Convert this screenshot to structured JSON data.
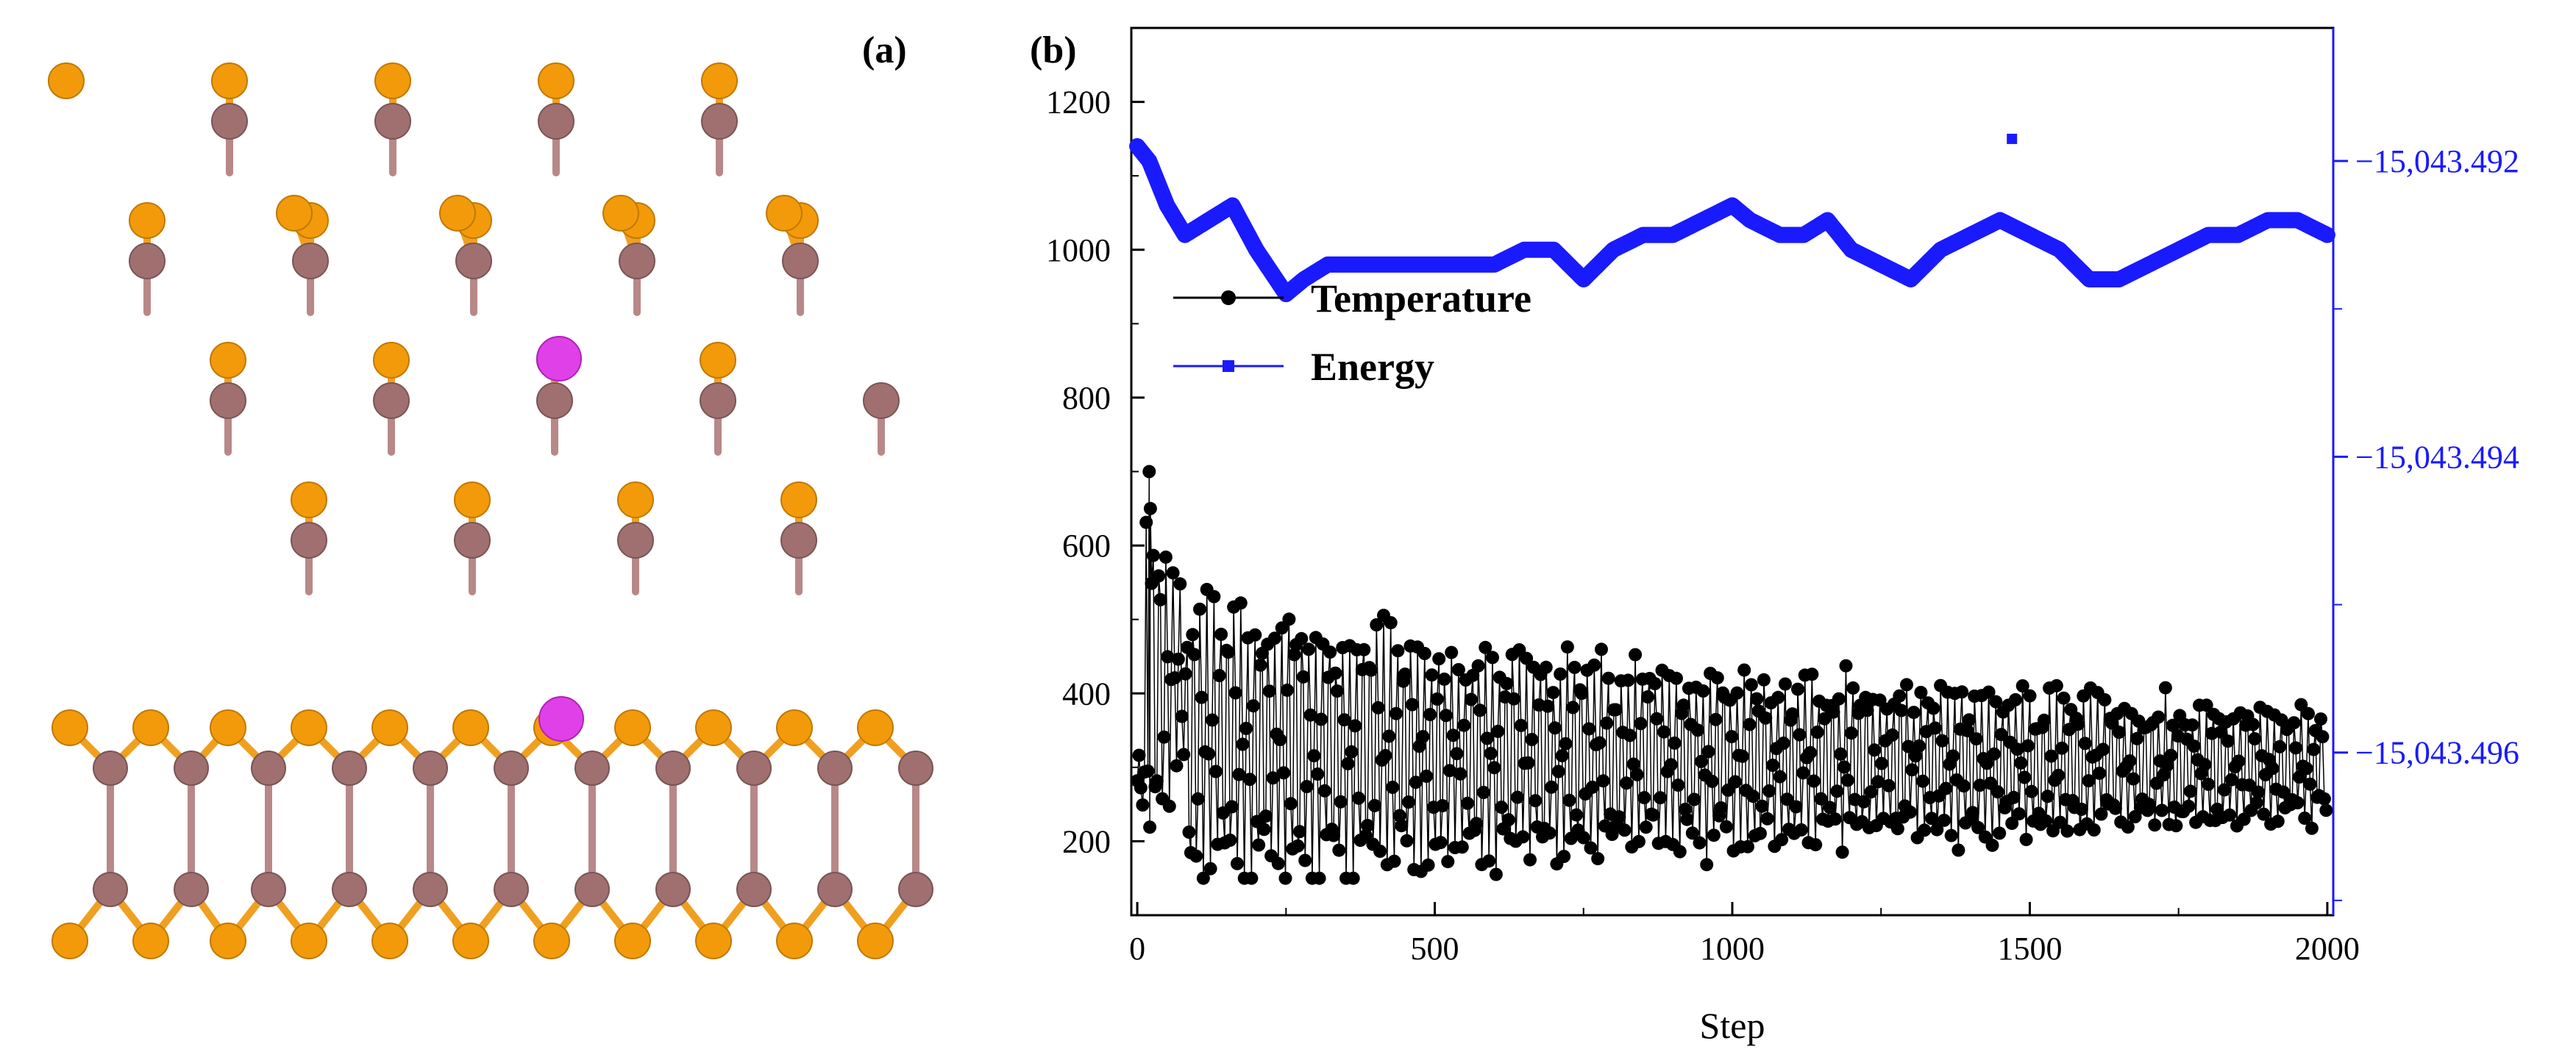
{
  "figure": {
    "panel_a_label": "(a)",
    "panel_b_label": "(b)"
  },
  "colors": {
    "temperature": "#000000",
    "energy": "#1a1aff",
    "atom_orange": "#f29a0a",
    "atom_mauve": "#a07070",
    "atom_magenta": "#e040e8",
    "bond_orange": "#f0a020",
    "bond_mauve": "#b88888",
    "right_axis": "#1a1aff"
  },
  "chart_data": {
    "type": "line",
    "title": "",
    "xlabel": "Step",
    "ylabel_left": "",
    "ylabel_right": "",
    "xlim": [
      -10,
      2010
    ],
    "ylim_left": [
      100,
      1300
    ],
    "ylim_right": [
      -15043.4971,
      -15043.4911
    ],
    "x_ticks": [
      0,
      500,
      1000,
      1500,
      2000
    ],
    "x_tick_labels": [
      "0",
      "500",
      "1000",
      "1500",
      "2000"
    ],
    "y_ticks_left": [
      200,
      400,
      600,
      800,
      1000,
      1200
    ],
    "y_tick_labels_left": [
      "200",
      "400",
      "600",
      "800",
      "1000",
      "1200"
    ],
    "y_ticks_right": [
      -15043.496,
      -15043.494,
      -15043.492
    ],
    "y_tick_labels_right": [
      "−15,043.496",
      "−15,043.494",
      "−15,043.492"
    ],
    "legend_position": "upper-left",
    "series": [
      {
        "name": "Temperature",
        "axis": "left",
        "marker": "circle",
        "description": "MD temperature oscillating; initial spike to ~700 K near step 20, then damped oscillation between ~200 and ~450 K settling around 300 K",
        "anchor_points": [
          {
            "x": 0,
            "y": 300
          },
          {
            "x": 20,
            "y": 700
          },
          {
            "x": 60,
            "y": 620
          },
          {
            "x": 100,
            "y": 180
          },
          {
            "x": 250,
            "y": 530
          },
          {
            "x": 500,
            "y": 200
          },
          {
            "x": 1000,
            "y": 300
          },
          {
            "x": 1500,
            "y": 300
          },
          {
            "x": 2000,
            "y": 320
          }
        ]
      },
      {
        "name": "Energy",
        "axis": "right",
        "marker": "square",
        "x": [
          0,
          20,
          50,
          80,
          120,
          160,
          200,
          250,
          280,
          320,
          360,
          400,
          450,
          500,
          550,
          600,
          650,
          700,
          750,
          800,
          850,
          900,
          950,
          1000,
          1030,
          1080,
          1120,
          1160,
          1200,
          1250,
          1300,
          1350,
          1400,
          1450,
          1500,
          1550,
          1600,
          1650,
          1700,
          1750,
          1800,
          1850,
          1900,
          1950,
          2000
        ],
        "y": [
          -15043.4919,
          -15043.492,
          -15043.4923,
          -15043.4925,
          -15043.4924,
          -15043.4923,
          -15043.4926,
          -15043.4929,
          -15043.4928,
          -15043.4927,
          -15043.4927,
          -15043.4927,
          -15043.4927,
          -15043.4927,
          -15043.4927,
          -15043.4927,
          -15043.4926,
          -15043.4926,
          -15043.4928,
          -15043.4926,
          -15043.4925,
          -15043.4925,
          -15043.4924,
          -15043.4923,
          -15043.4924,
          -15043.4925,
          -15043.4925,
          -15043.4924,
          -15043.4926,
          -15043.4927,
          -15043.4928,
          -15043.4926,
          -15043.4925,
          -15043.4924,
          -15043.4925,
          -15043.4926,
          -15043.4928,
          -15043.4928,
          -15043.4927,
          -15043.4926,
          -15043.4925,
          -15043.4925,
          -15043.4924,
          -15043.4924,
          -15043.4925
        ]
      }
    ]
  }
}
